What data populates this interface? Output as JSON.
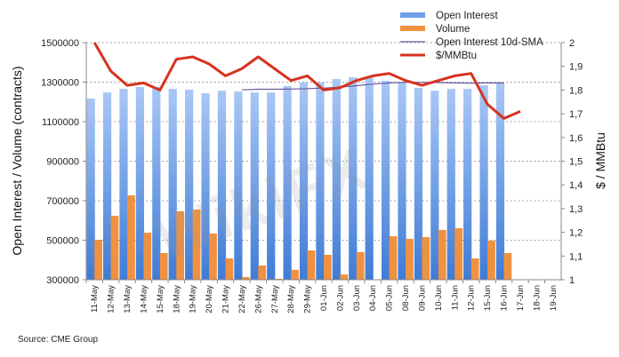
{
  "chart_data": {
    "type": "bar",
    "title": "",
    "source": "Source: CME Group",
    "watermark": "WikiFX",
    "ylabel": "Open Interest / Volume (contracts)",
    "y2label": "$ / MMBtu",
    "ylim": [
      300000,
      1500000
    ],
    "y2lim": [
      1,
      2
    ],
    "yticks": [
      "300000",
      "500000",
      "700000",
      "900000",
      "1100000",
      "1300000",
      "1500000"
    ],
    "yticks_values": [
      300000,
      500000,
      700000,
      900000,
      1100000,
      1300000,
      1500000
    ],
    "y2ticks": [
      "1",
      "1,1",
      "1,2",
      "1,3",
      "1,4",
      "1,5",
      "1,6",
      "1,7",
      "1,8",
      "1,9",
      "2"
    ],
    "y2ticks_values": [
      1,
      1.1,
      1.2,
      1.3,
      1.4,
      1.5,
      1.6,
      1.7,
      1.8,
      1.9,
      2
    ],
    "grid": true,
    "legend_position": "top-right",
    "categories": [
      "11-May",
      "12-May",
      "13-May",
      "14-May",
      "15-May",
      "18-May",
      "19-May",
      "20-May",
      "21-May",
      "22-May",
      "26-May",
      "27-May",
      "28-May",
      "29-May",
      "01-Jun",
      "02-Jun",
      "03-Jun",
      "04-Jun",
      "05-Jun",
      "08-Jun",
      "09-Jun",
      "10-Jun",
      "11-Jun",
      "12-Jun",
      "15-Jun",
      "16-Jun",
      "17-Jun",
      "18-Jun",
      "19-Jun"
    ],
    "series": [
      {
        "name": "Open Interest",
        "type": "bar",
        "axis": "left",
        "color": "#6f9fe6",
        "values": [
          1217000,
          1248000,
          1266000,
          1275000,
          1275000,
          1266000,
          1262000,
          1244000,
          1257000,
          1253000,
          1248000,
          1248000,
          1280000,
          1298000,
          1298000,
          1316000,
          1325000,
          1325000,
          1307000,
          1298000,
          1271000,
          1257000,
          1266000,
          1266000,
          1284000,
          1298000,
          null,
          null,
          null
        ]
      },
      {
        "name": "Volume",
        "type": "bar",
        "axis": "left",
        "color": "#f0913f",
        "values": [
          502000,
          624000,
          727000,
          538000,
          435000,
          646000,
          655000,
          534000,
          408000,
          314000,
          372000,
          305000,
          350000,
          448000,
          426000,
          327000,
          440000,
          300000,
          520000,
          507000,
          516000,
          552000,
          561000,
          408000,
          498000,
          435000,
          null,
          null,
          null
        ]
      },
      {
        "name": "Open Interest 10d-SMA",
        "type": "line",
        "axis": "left",
        "color": "#6a5a9c",
        "values": [
          null,
          null,
          null,
          null,
          null,
          null,
          null,
          null,
          null,
          1261000,
          1264000,
          1264000,
          1265000,
          1267000,
          1270000,
          1275000,
          1282000,
          1290000,
          1296000,
          1299000,
          1299000,
          1298000,
          1296000,
          1295000,
          1296000,
          1296000,
          null,
          null,
          null
        ]
      },
      {
        "name": "$/MMBtu",
        "type": "line",
        "axis": "right",
        "color": "#d7321e",
        "values": [
          2.0,
          1.88,
          1.82,
          1.83,
          1.8,
          1.93,
          1.94,
          1.91,
          1.86,
          1.89,
          1.94,
          1.89,
          1.84,
          1.86,
          1.8,
          1.81,
          1.84,
          1.86,
          1.87,
          1.84,
          1.82,
          1.84,
          1.86,
          1.87,
          1.74,
          1.68,
          1.71,
          null,
          null
        ]
      }
    ]
  }
}
